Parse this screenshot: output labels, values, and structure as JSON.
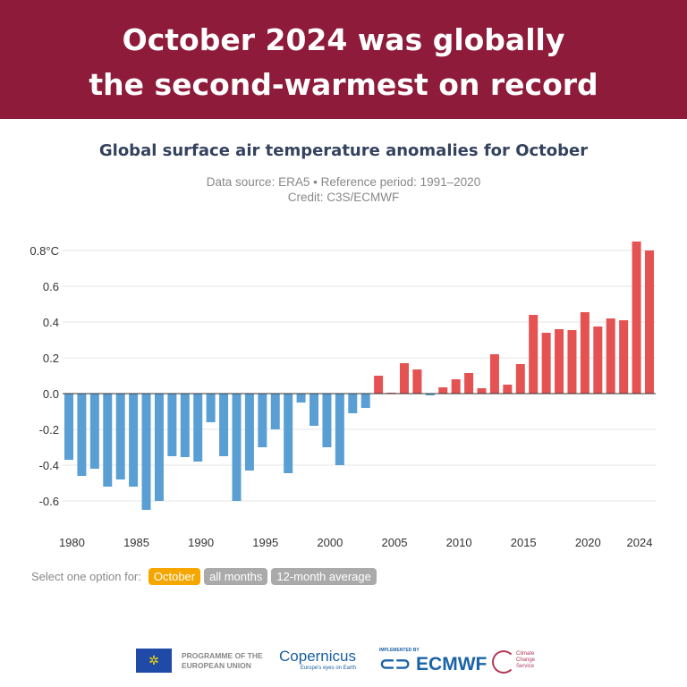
{
  "header": {
    "line1": "October 2024 was globally",
    "line2": "the second-warmest on record"
  },
  "chart_data": {
    "type": "bar",
    "title": "Global surface air temperature anomalies for October",
    "subtitle": "Data source: ERA5 • Reference period: 1991–2020",
    "credit": "Credit: C3S/ECMWF",
    "ylim": [
      -0.7,
      0.85
    ],
    "yticks": [
      {
        "v": 0.8,
        "label": "0.8°C"
      },
      {
        "v": 0.6,
        "label": "0.6"
      },
      {
        "v": 0.4,
        "label": "0.4"
      },
      {
        "v": 0.2,
        "label": "0.2"
      },
      {
        "v": 0.0,
        "label": "0.0"
      },
      {
        "v": -0.2,
        "label": "-0.2"
      },
      {
        "v": -0.4,
        "label": "-0.4"
      },
      {
        "v": -0.6,
        "label": "-0.6"
      }
    ],
    "xticks": [
      "1980",
      "1985",
      "1990",
      "1995",
      "2000",
      "2005",
      "2010",
      "2015",
      "2020",
      "2024"
    ],
    "grid": true,
    "colors": {
      "positive": "#e45252",
      "negative": "#5a9fd4"
    },
    "years": [
      1979,
      1980,
      1981,
      1982,
      1983,
      1984,
      1985,
      1986,
      1987,
      1988,
      1989,
      1990,
      1991,
      1992,
      1993,
      1994,
      1995,
      1996,
      1997,
      1998,
      1999,
      2000,
      2001,
      2002,
      2003,
      2004,
      2005,
      2006,
      2007,
      2008,
      2009,
      2010,
      2011,
      2012,
      2013,
      2014,
      2015,
      2016,
      2017,
      2018,
      2019,
      2020,
      2021,
      2022,
      2023,
      2024
    ],
    "values": [
      -0.37,
      -0.46,
      -0.42,
      -0.52,
      -0.48,
      -0.52,
      -0.65,
      -0.6,
      -0.35,
      -0.355,
      -0.38,
      -0.16,
      -0.35,
      -0.6,
      -0.43,
      -0.3,
      -0.2,
      -0.445,
      -0.05,
      -0.18,
      -0.3,
      -0.4,
      -0.11,
      -0.08,
      0.1,
      0.005,
      0.17,
      0.135,
      -0.01,
      0.035,
      0.08,
      0.115,
      0.03,
      0.22,
      0.05,
      0.165,
      0.44,
      0.34,
      0.36,
      0.355,
      0.455,
      0.375,
      0.42,
      0.41,
      0.85,
      0.8
    ]
  },
  "options": {
    "label": "Select one option for:",
    "items": [
      "October",
      "all months",
      "12-month average"
    ],
    "selected": "October"
  },
  "logos": {
    "eu": "PROGRAMME OF THE EUROPEAN UNION",
    "copernicus": "opernicus",
    "copernicus_tag": "Europe's eyes on Earth",
    "ecmwf_tag": "IMPLEMENTED BY",
    "ecmwf": "ECMWF",
    "c3s": "Climate Change Service"
  }
}
